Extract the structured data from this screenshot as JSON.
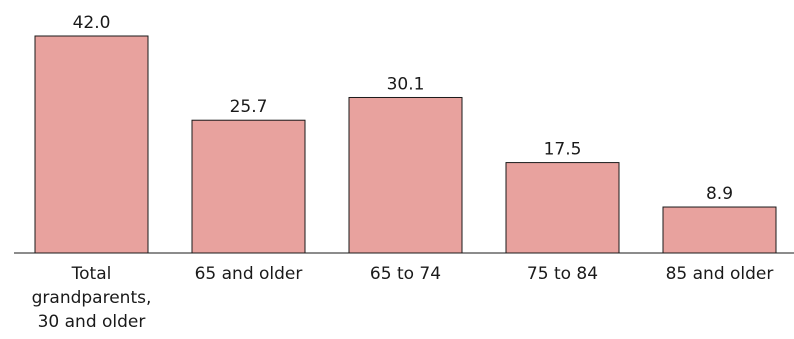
{
  "colors": {
    "bar_fill": "#e8a29e",
    "bar_stroke": "#1a1a1a",
    "axis": "#1a1a1a",
    "text": "#1a1a1a"
  },
  "chart_data": {
    "type": "bar",
    "title": "",
    "xlabel": "",
    "ylabel": "",
    "ylim": [
      0,
      42.0
    ],
    "grid": false,
    "legend": "none",
    "categories": [
      [
        "Total",
        "grandparents,",
        "30 and older"
      ],
      [
        "65 and older"
      ],
      [
        "65 to 74"
      ],
      [
        "75 to 84"
      ],
      [
        "85 and older"
      ]
    ],
    "values": [
      42.0,
      25.7,
      30.1,
      17.5,
      8.9
    ],
    "data_labels": [
      "42.0",
      "25.7",
      "30.1",
      "17.5",
      "8.9"
    ]
  }
}
